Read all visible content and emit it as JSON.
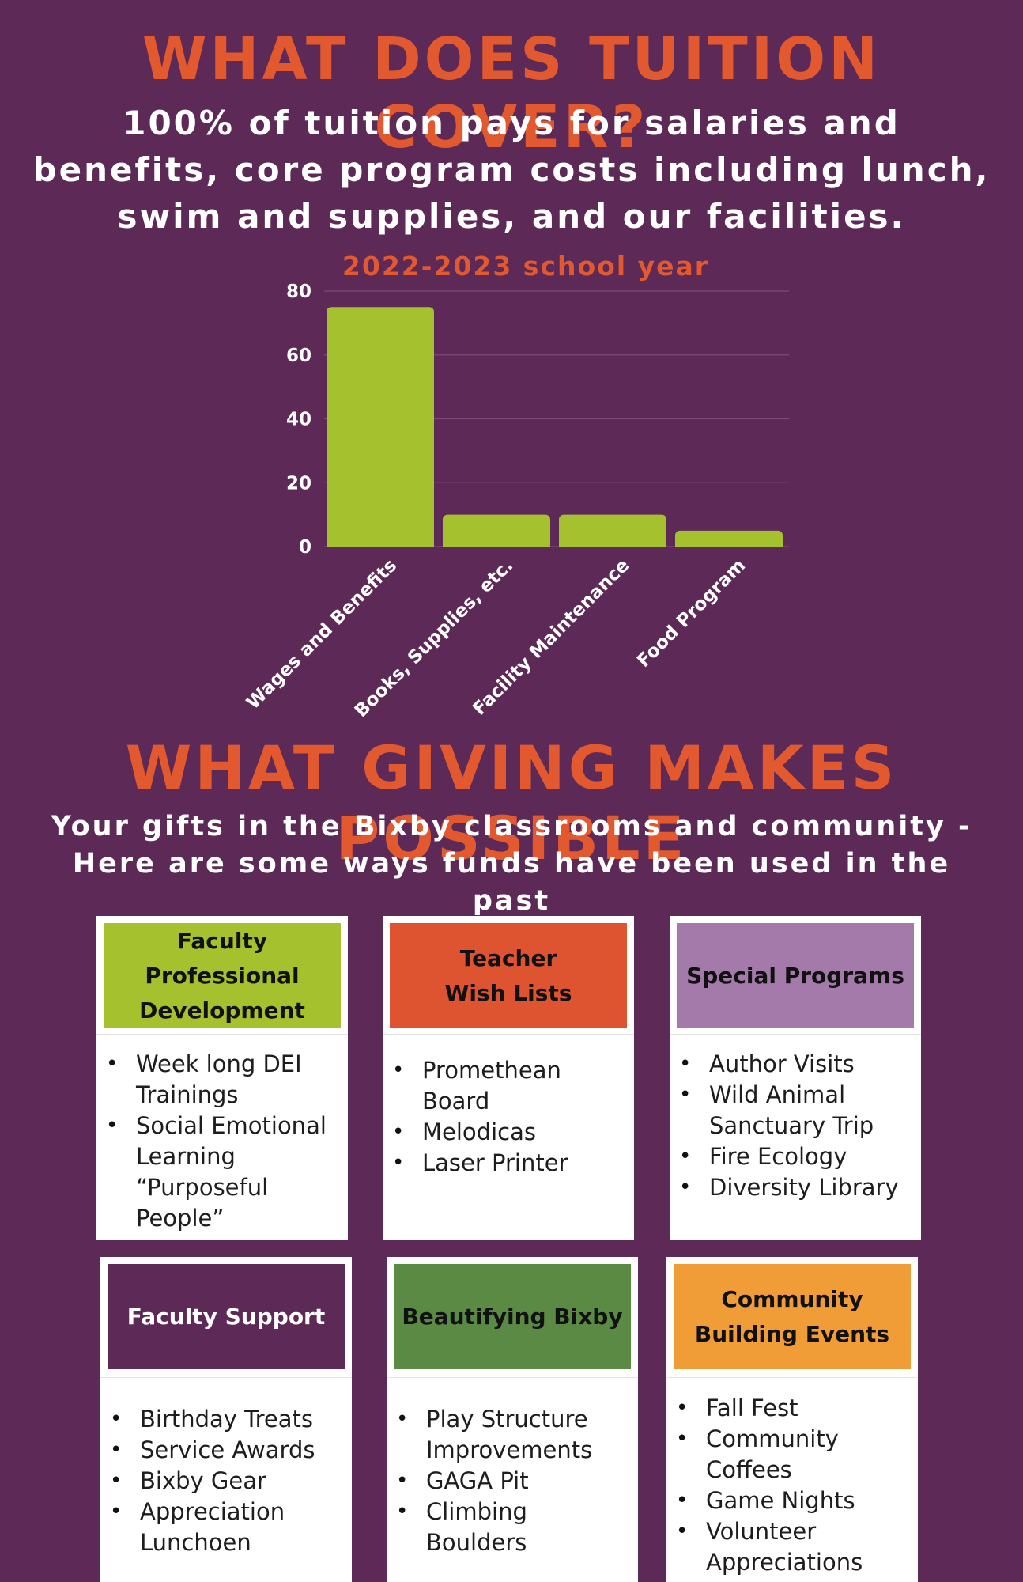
{
  "section1": {
    "title": "WHAT DOES TUITION COVER?",
    "subtitle": "100% of tuition pays for salaries and benefits, core program costs including lunch, swim and supplies, and our facilities."
  },
  "chart_data": {
    "type": "bar",
    "title": "2022-2023 school year",
    "categories": [
      "Wages and Benefits",
      "Books, Supplies, etc.",
      "Facility Maintenance",
      "Food Program"
    ],
    "values": [
      75,
      10,
      10,
      5
    ],
    "yticks": [
      "0",
      "20",
      "40",
      "60",
      "80"
    ],
    "ylim": [
      0,
      80
    ],
    "xlabel": "",
    "ylabel": "",
    "grid": true,
    "bar_color": "#a5c12e",
    "title_color": "#e2592f"
  },
  "section2": {
    "title": "WHAT GIVING MAKES POSSIBLE",
    "subtitle": "Your gifts in the Bixby classrooms and community - Here are some ways funds have been used in the past"
  },
  "cards": [
    {
      "head_lines": [
        "Faculty",
        "Professional",
        "Development"
      ],
      "color": "#a5c12e",
      "text_color": "#111111",
      "items": [
        "Week long DEI Trainings",
        "Social Emotional Learning “Purposeful People”"
      ]
    },
    {
      "head_lines": [
        "Teacher",
        "Wish Lists"
      ],
      "color": "#de5430",
      "text_color": "#111111",
      "items": [
        "Promethean Board",
        "Melodicas",
        "Laser Printer"
      ]
    },
    {
      "head_lines": [
        "Special Programs"
      ],
      "color": "#a47aab",
      "text_color": "#111111",
      "items": [
        "Author Visits",
        "Wild Animal Sanctuary Trip",
        "Fire Ecology",
        "Diversity Library"
      ]
    },
    {
      "head_lines": [
        "Faculty Support"
      ],
      "color": "#5d2a58",
      "text_color": "#ffffff",
      "items": [
        "Birthday Treats",
        "Service Awards",
        "Bixby Gear",
        "Appreciation Lunchoen"
      ]
    },
    {
      "head_lines": [
        "Beautifying Bixby"
      ],
      "color": "#5a8a44",
      "text_color": "#111111",
      "items": [
        "Play Structure Improvements",
        "GAGA Pit",
        "Climbing Boulders"
      ]
    },
    {
      "head_lines": [
        "Community",
        "Building Events"
      ],
      "color": "#f09d38",
      "text_color": "#111111",
      "items": [
        "Fall Fest",
        "Community Coffees",
        "Game Nights",
        "Volunteer Appreciations"
      ]
    }
  ]
}
